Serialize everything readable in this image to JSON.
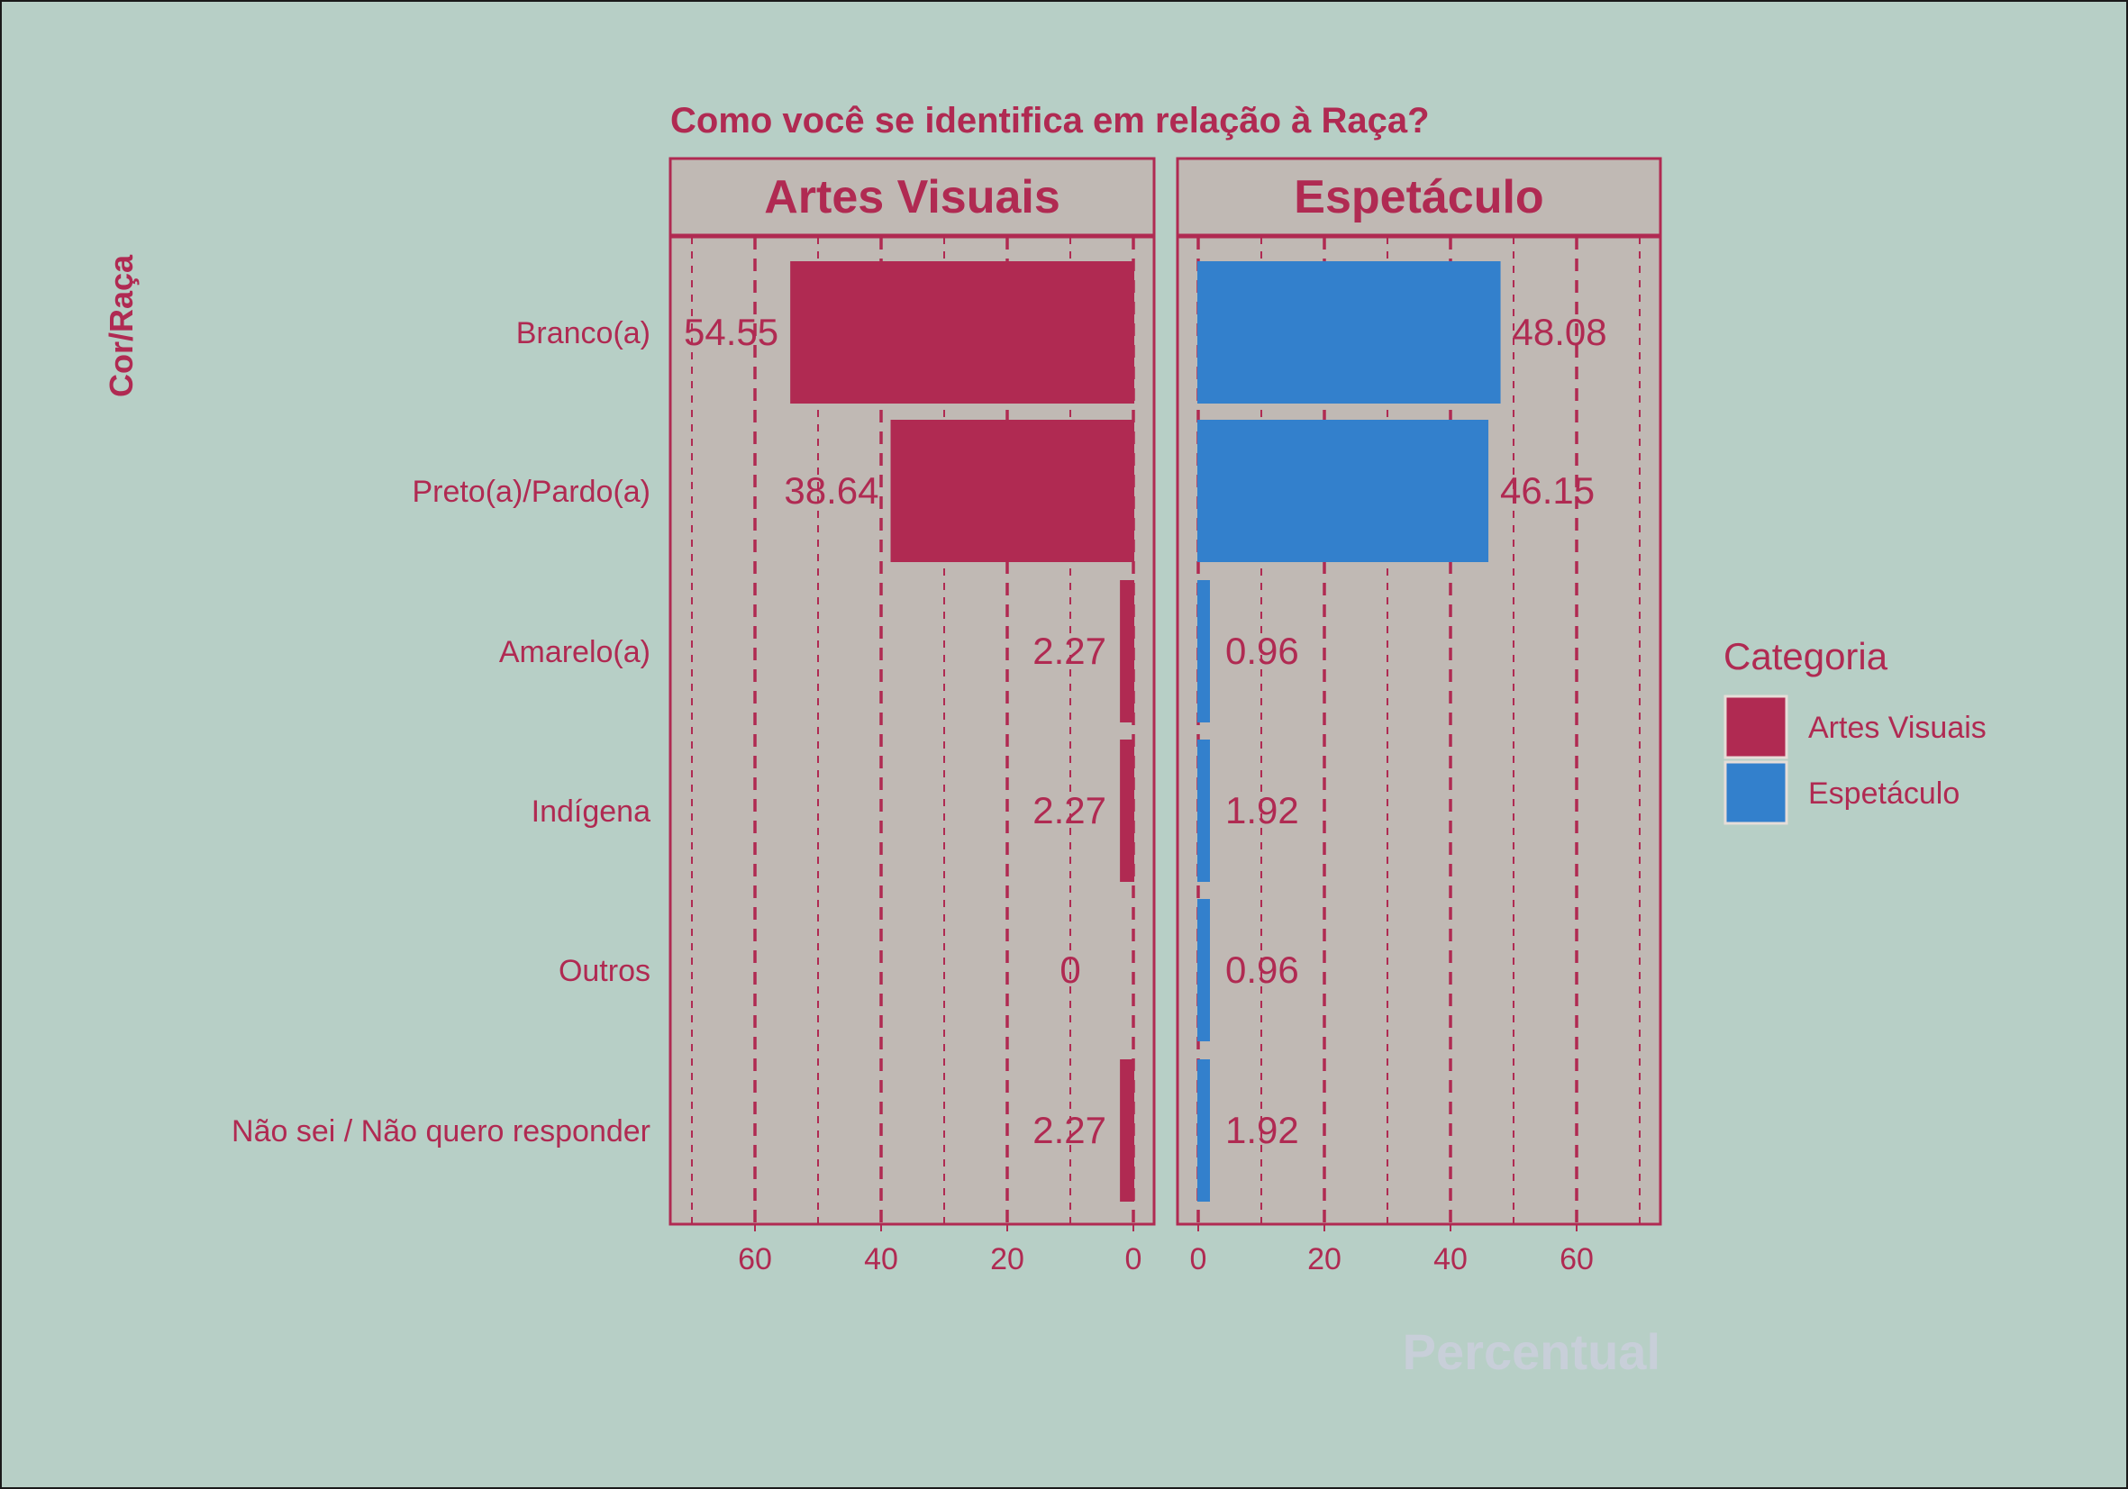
{
  "chart_data": {
    "type": "bar",
    "title": "Como você se identifica em relação à Raça?",
    "xlabel": "Percentual",
    "ylabel": "Cor/Raça",
    "categories": [
      "Branco(a)",
      "Preto(a)/Pardo(a)",
      "Amarelo(a)",
      "Indígena",
      "Outros",
      "Não sei / Não quero responder"
    ],
    "series": [
      {
        "name": "Artes Visuais",
        "values": [
          54.55,
          38.64,
          2.27,
          2.27,
          0,
          2.27
        ],
        "color": "#b02a52"
      },
      {
        "name": "Espetáculo",
        "values": [
          48.08,
          46.15,
          0.96,
          1.92,
          0.96,
          1.92
        ],
        "color": "#3380cc"
      }
    ],
    "value_labels": {
      "Artes Visuais": [
        "54.55",
        "38.64",
        "2.27",
        "2.27",
        "0",
        "2.27"
      ],
      "Espetáculo": [
        "48.08",
        "46.15",
        "0.96",
        "1.92",
        "0.96",
        "1.92"
      ]
    },
    "panels": [
      "Artes Visuais",
      "Espetáculo"
    ],
    "xlim": [
      0,
      72
    ],
    "x_ticks": [
      0,
      20,
      40,
      60
    ],
    "x_tick_labels": [
      "0",
      "20",
      "40",
      "60"
    ],
    "legend": {
      "title": "Categoria",
      "position": "right"
    },
    "grid": true,
    "colors": {
      "background": "#b7cfc6",
      "panel": "#c0b9b4",
      "accent": "#b02a52",
      "xlabel": "#c8cfd9"
    }
  }
}
